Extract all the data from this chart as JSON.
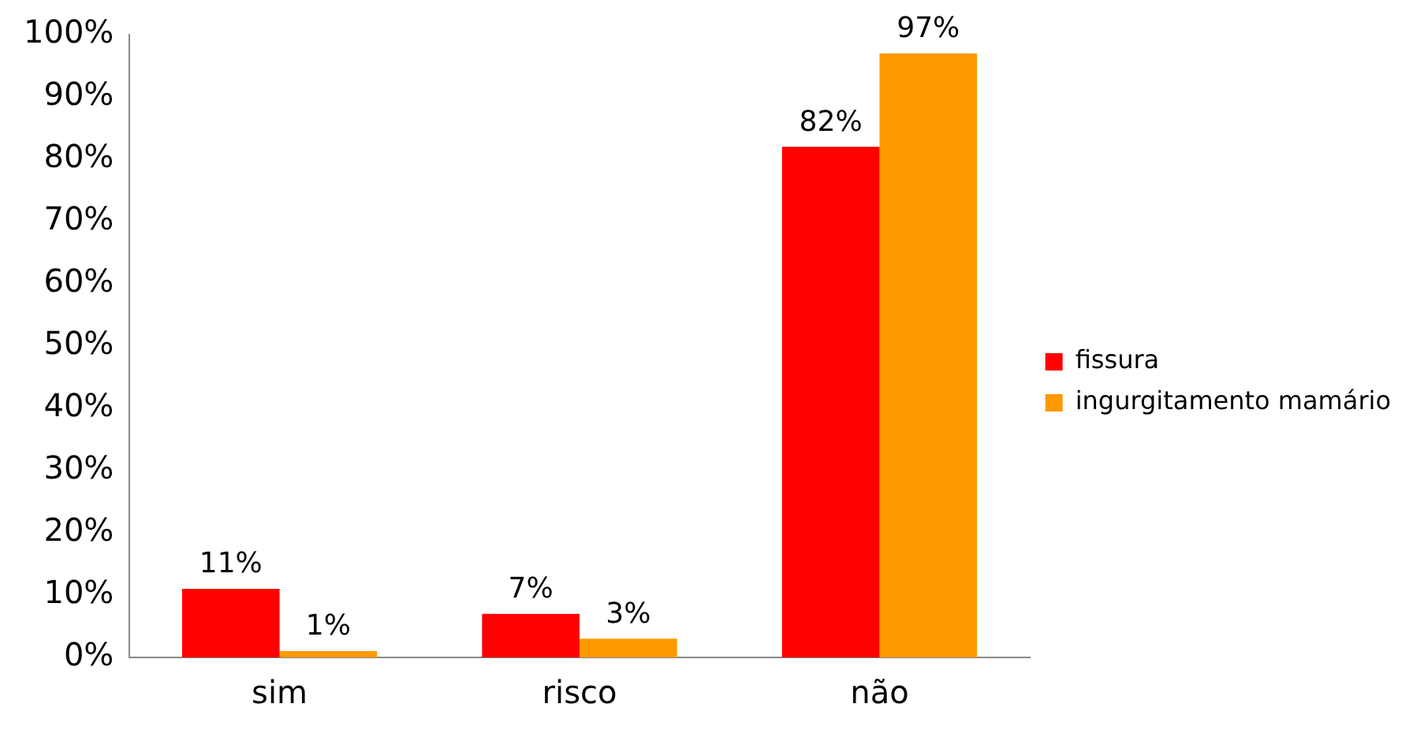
{
  "chart_data": {
    "type": "bar",
    "categories": [
      "sim",
      "risco",
      "não"
    ],
    "series": [
      {
        "name": "fissura",
        "color": "#ff0000",
        "values": [
          11,
          7,
          82
        ],
        "value_labels": [
          "11%",
          "7%",
          "82%"
        ]
      },
      {
        "name": "ingurgitamento mamário",
        "color": "#ff9900",
        "values": [
          1,
          3,
          97
        ],
        "value_labels": [
          "1%",
          "3%",
          "97%"
        ]
      }
    ],
    "ylim": [
      0,
      100
    ],
    "yticks": [
      {
        "value": 0,
        "label": "0%"
      },
      {
        "value": 10,
        "label": "10%"
      },
      {
        "value": 20,
        "label": "20%"
      },
      {
        "value": 30,
        "label": "30%"
      },
      {
        "value": 40,
        "label": "40%"
      },
      {
        "value": 50,
        "label": "50%"
      },
      {
        "value": 60,
        "label": "60%"
      },
      {
        "value": 70,
        "label": "70%"
      },
      {
        "value": 80,
        "label": "80%"
      },
      {
        "value": 90,
        "label": "90%"
      },
      {
        "value": 100,
        "label": "100%"
      }
    ],
    "grid": false,
    "legend": "right"
  }
}
